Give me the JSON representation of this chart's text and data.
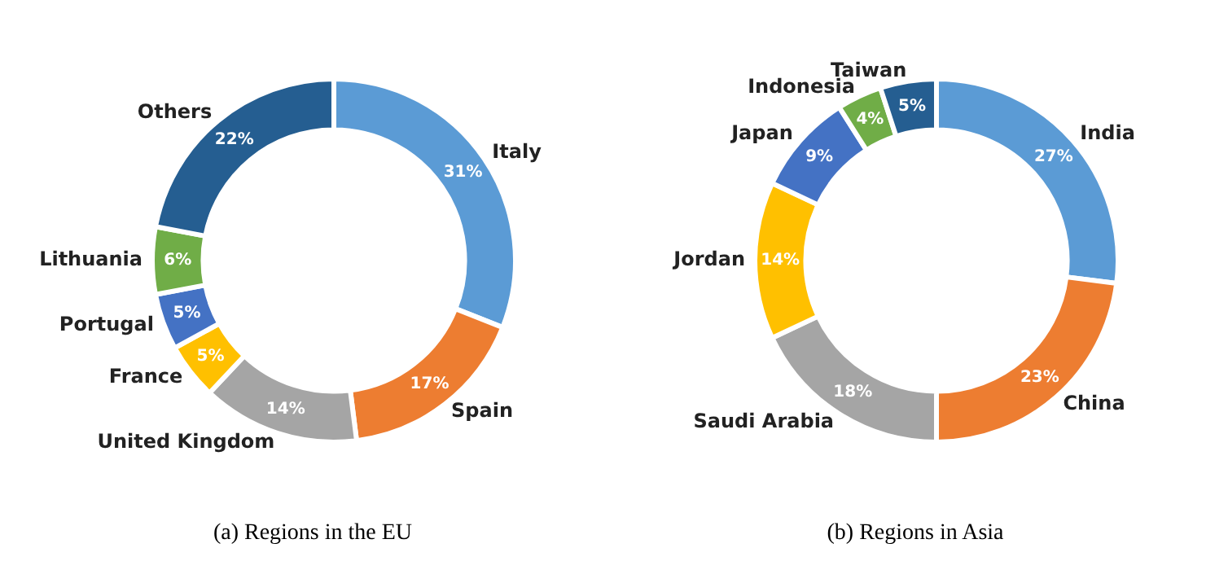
{
  "chart_data": [
    {
      "type": "donut",
      "title": "(a) Regions in the EU",
      "categories": [
        "Italy",
        "Spain",
        "United Kingdom",
        "France",
        "Portugal",
        "Lithuania",
        "Others"
      ],
      "values": [
        31,
        17,
        14,
        5,
        5,
        6,
        22
      ],
      "value_labels": [
        "31%",
        "17%",
        "14%",
        "5%",
        "5%",
        "6%",
        "22%"
      ],
      "colors": [
        "#5b9bd5",
        "#ed7d31",
        "#a5a5a5",
        "#ffc000",
        "#4472c4",
        "#70ad47",
        "#255e91"
      ],
      "legend": false
    },
    {
      "type": "donut",
      "title": "(b) Regions in Asia",
      "categories": [
        "India",
        "China",
        "Saudi Arabia",
        "Jordan",
        "Japan",
        "Indonesia",
        "Taiwan"
      ],
      "values": [
        27,
        23,
        18,
        14,
        9,
        4,
        5
      ],
      "value_labels": [
        "27%",
        "23%",
        "18%",
        "14%",
        "9%",
        "4%",
        "5%"
      ],
      "colors": [
        "#5b9bd5",
        "#ed7d31",
        "#a5a5a5",
        "#ffc000",
        "#4472c4",
        "#70ad47",
        "#255e91"
      ],
      "legend": false
    }
  ]
}
